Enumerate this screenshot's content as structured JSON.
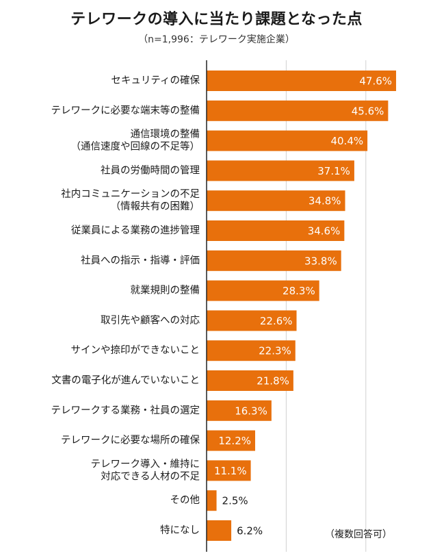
{
  "title": "テレワークの導入に当たり課題となった点",
  "subtitle": "（n=1,996：テレワーク実施企業）",
  "note": "（複数回答可）",
  "colors": {
    "bar": "#E8700C",
    "grid": "#d0d0d0",
    "axis": "#222222",
    "label_inside": "#ffffff",
    "label_outside": "#1a1a1a"
  },
  "chart_data": {
    "type": "bar",
    "orientation": "horizontal",
    "unit": "%",
    "xlim": [
      0,
      60
    ],
    "grid": true,
    "categories": [
      [
        "セキュリティの確保"
      ],
      [
        "テレワークに必要な端末等の整備"
      ],
      [
        "通信環境の整備",
        "（通信速度や回線の不足等）"
      ],
      [
        "社員の労働時間の管理"
      ],
      [
        "社内コミュニケーションの不足",
        "（情報共有の困難）"
      ],
      [
        "従業員による業務の進捗管理"
      ],
      [
        "社員への指示・指導・評価"
      ],
      [
        "就業規則の整備"
      ],
      [
        "取引先や顧客への対応"
      ],
      [
        "サインや捺印ができないこと"
      ],
      [
        "文書の電子化が進んでいないこと"
      ],
      [
        "テレワークする業務・社員の選定"
      ],
      [
        "テレワークに必要な場所の確保"
      ],
      [
        "テレワーク導入・維持に",
        "対応できる人材の不足"
      ],
      [
        "その他"
      ],
      [
        "特になし"
      ]
    ],
    "values": [
      47.6,
      45.6,
      40.4,
      37.1,
      34.8,
      34.6,
      33.8,
      28.3,
      22.6,
      22.3,
      21.8,
      16.3,
      12.2,
      11.1,
      2.5,
      6.2
    ],
    "value_labels": [
      "47.6%",
      "45.6%",
      "40.4%",
      "37.1%",
      "34.8%",
      "34.6%",
      "33.8%",
      "28.3%",
      "22.6%",
      "22.3%",
      "21.8%",
      "16.3%",
      "12.2%",
      "11.1%",
      "2.5%",
      "6.2%"
    ]
  }
}
